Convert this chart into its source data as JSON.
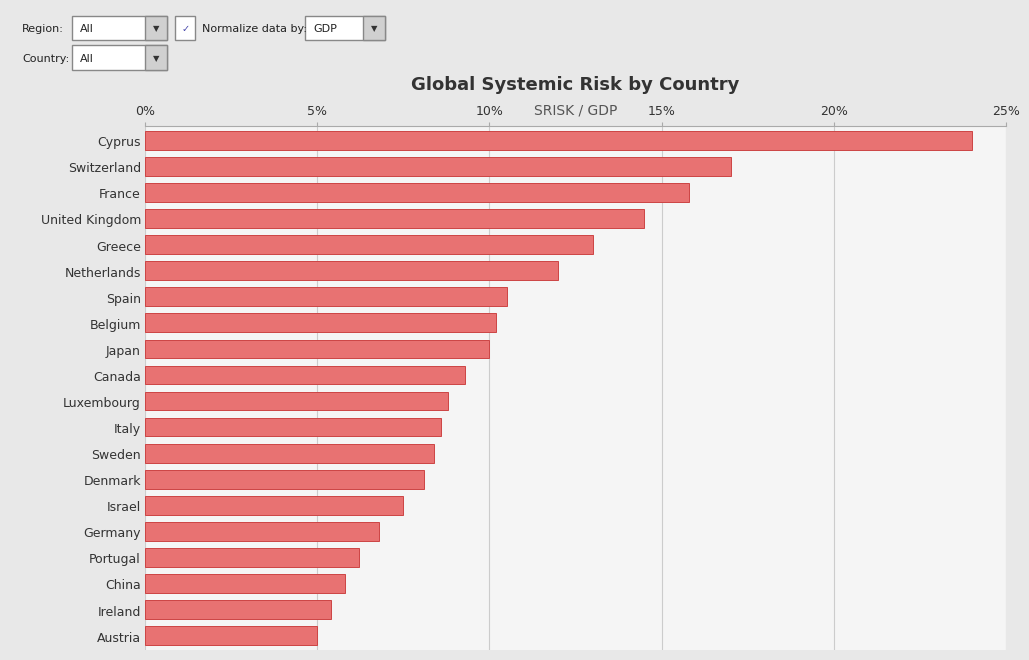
{
  "title": "Global Systemic Risk by Country",
  "subtitle": "SRISK / GDP",
  "countries": [
    "Cyprus",
    "Switzerland",
    "France",
    "United Kingdom",
    "Greece",
    "Netherlands",
    "Spain",
    "Belgium",
    "Japan",
    "Canada",
    "Luxembourg",
    "Italy",
    "Sweden",
    "Denmark",
    "Israel",
    "Germany",
    "Portugal",
    "China",
    "Ireland",
    "Austria"
  ],
  "values": [
    24.0,
    17.0,
    15.8,
    14.5,
    13.0,
    12.0,
    10.5,
    10.2,
    10.0,
    9.3,
    8.8,
    8.6,
    8.4,
    8.1,
    7.5,
    6.8,
    6.2,
    5.8,
    5.4,
    5.0
  ],
  "bar_color": "#e87272",
  "bar_edge_color": "#cc4444",
  "background_color": "#e8e8e8",
  "plot_background": "#f5f5f5",
  "xlim": [
    0,
    25
  ],
  "xtick_positions": [
    0,
    5,
    10,
    15,
    20,
    25
  ],
  "xtick_labels": [
    "0%",
    "5%",
    "10%",
    "15%",
    "20%",
    "25%"
  ],
  "title_fontsize": 13,
  "subtitle_fontsize": 10,
  "tick_fontsize": 9,
  "label_fontsize": 9
}
